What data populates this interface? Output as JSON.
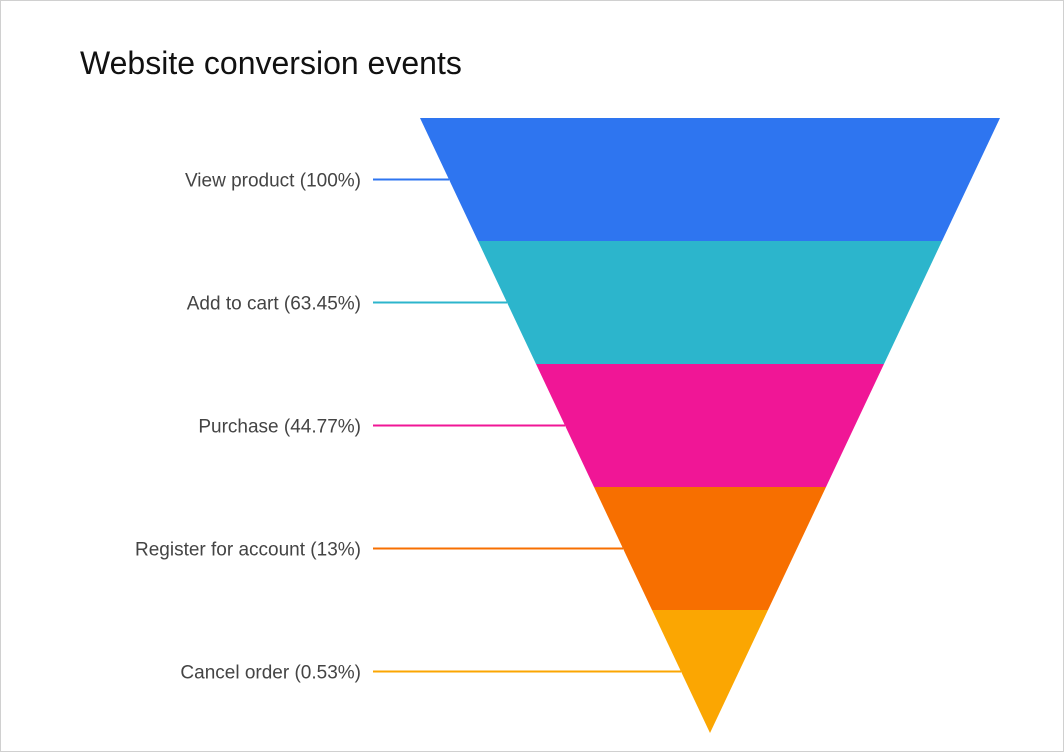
{
  "chart_data": {
    "type": "funnel",
    "title": "Website conversion events",
    "stages": [
      {
        "label": "View product (100%)",
        "name": "View product",
        "percent": 100,
        "color": "#2e75f0"
      },
      {
        "label": "Add to cart (63.45%)",
        "name": "Add to cart",
        "percent": 63.45,
        "color": "#2cb5cc"
      },
      {
        "label": "Purchase (44.77%)",
        "name": "Purchase",
        "percent": 44.77,
        "color": "#f01696"
      },
      {
        "label": "Register for account (13%)",
        "name": "Register for account",
        "percent": 13,
        "color": "#f76f00"
      },
      {
        "label": "Cancel order (0.53%)",
        "name": "Cancel order",
        "percent": 0.53,
        "color": "#fba602"
      }
    ]
  }
}
